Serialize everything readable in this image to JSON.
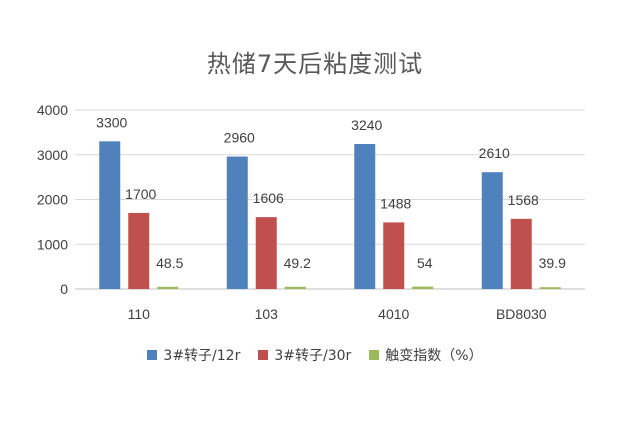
{
  "chart_data": {
    "type": "bar",
    "title": "热储7天后粘度测试",
    "categories": [
      "110",
      "103",
      "4010",
      "BD8030"
    ],
    "series": [
      {
        "name": "3#转子/12r",
        "color": "#4F81BD",
        "values": [
          3300,
          2960,
          3240,
          2610
        ],
        "labels": [
          "3300",
          "2960",
          "3240",
          "2610"
        ]
      },
      {
        "name": "3#转子/30r",
        "color": "#C0504D",
        "values": [
          1700,
          1606,
          1488,
          1568
        ],
        "labels": [
          "1700",
          "1606",
          "1488",
          "1568"
        ]
      },
      {
        "name": "触变指数（%）",
        "color": "#9BBB59",
        "values": [
          48.5,
          49.2,
          54,
          39.9
        ],
        "labels": [
          "48.5",
          "49.2",
          "54",
          "39.9"
        ]
      }
    ],
    "yticks": [
      0,
      1000,
      2000,
      3000,
      4000
    ],
    "ylim": [
      0,
      4000
    ],
    "grid": true,
    "legend": "bottom"
  }
}
